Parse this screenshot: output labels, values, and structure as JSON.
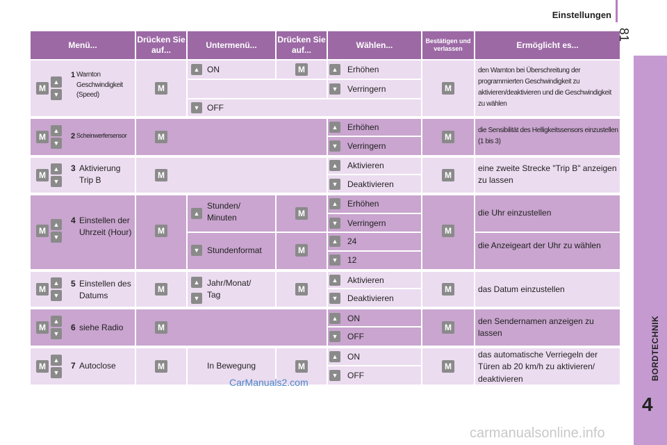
{
  "page": {
    "header_title": "Einstellungen",
    "page_number": "81",
    "side_label": "BORDTECHNIK",
    "chapter_number": "4",
    "watermark": "CarManuals2.com",
    "watermark2": "carmanualsonline.info"
  },
  "keys": {
    "m": "M",
    "up": "▲",
    "down": "▼"
  },
  "table": {
    "headers": [
      "Menü...",
      "Drücken Sie auf...",
      "Untermenü...",
      "Drücken Sie auf...",
      "Wählen...",
      "Bestätigen und verlassen",
      "Ermöglicht es..."
    ],
    "rows": [
      {
        "num": "1",
        "menu": "Warnton Geschwindigkeit (Speed)",
        "sub": [
          {
            "label": "ON",
            "choices": [
              "Erhöhen",
              "Verringern"
            ]
          },
          {
            "label": "OFF",
            "choices": []
          }
        ],
        "result": "den Warnton bei Überschreitung der programmierten Geschwindigkeit zu aktivieren/deaktivieren und die Geschwindigkeit zu wählen"
      },
      {
        "num": "2",
        "menu": "Scheinwerfersensor",
        "choices": [
          "Erhöhen",
          "Verringern"
        ],
        "result": "die Sensibilität des Helligkeitssensors einzustellen (1 bis 3)"
      },
      {
        "num": "3",
        "menu": "Aktivierung Trip B",
        "choices": [
          "Aktivieren",
          "Deaktivieren"
        ],
        "result": "eine zweite Strecke \"Trip B\" anzeigen zu lassen"
      },
      {
        "num": "4",
        "menu": "Einstellen der Uhrzeit (Hour)",
        "sub": [
          {
            "label": "Stunden/ Minuten",
            "choices": [
              "Erhöhen",
              "Verringern"
            ],
            "result": "die Uhr einzustellen"
          },
          {
            "label": "Stundenformat",
            "choices": [
              "24",
              "12"
            ],
            "result": "die Anzeigeart der Uhr zu wählen"
          }
        ]
      },
      {
        "num": "5",
        "menu": "Einstellen des Datums",
        "sub_label": "Jahr/Monat/ Tag",
        "choices": [
          "Aktivieren",
          "Deaktivieren"
        ],
        "result": "das Datum einzustellen"
      },
      {
        "num": "6",
        "menu": "siehe Radio",
        "choices": [
          "ON",
          "OFF"
        ],
        "result": "den Sendernamen anzeigen zu lassen"
      },
      {
        "num": "7",
        "menu": "Autoclose",
        "sub_label": "In Bewegung",
        "choices": [
          "ON",
          "OFF"
        ],
        "result": "das automatische Verriegeln der Türen ab 20 km/h zu aktivieren/ deaktivieren"
      }
    ]
  }
}
